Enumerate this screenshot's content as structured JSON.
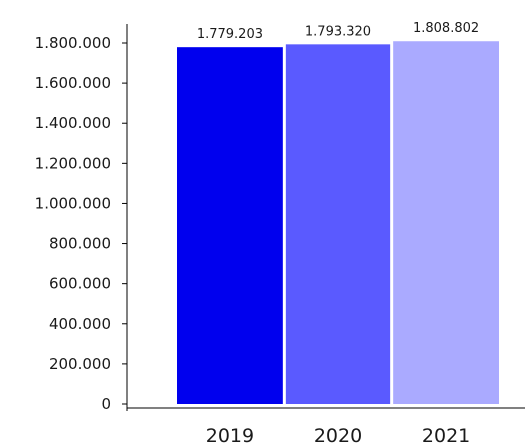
{
  "chart_data": {
    "type": "bar",
    "categories": [
      "2019",
      "2020",
      "2021"
    ],
    "values": [
      1779203,
      1793320,
      1808802
    ],
    "data_labels": [
      "1.779.203",
      "1.793.320",
      "1.808.802"
    ],
    "colors": [
      "#0000ee",
      "#5a5aff",
      "#aaaaff"
    ],
    "ylim": [
      0,
      1800000
    ],
    "yticks": [
      0,
      200000,
      400000,
      600000,
      800000,
      1000000,
      1200000,
      1400000,
      1600000,
      1800000
    ],
    "ytick_labels": [
      "0",
      "200.000",
      "400.000",
      "600.000",
      "800.000",
      "1.000.000",
      "1.200.000",
      "1.400.000",
      "1.600.000",
      "1.800.000"
    ],
    "grid": false,
    "legend": "none"
  }
}
